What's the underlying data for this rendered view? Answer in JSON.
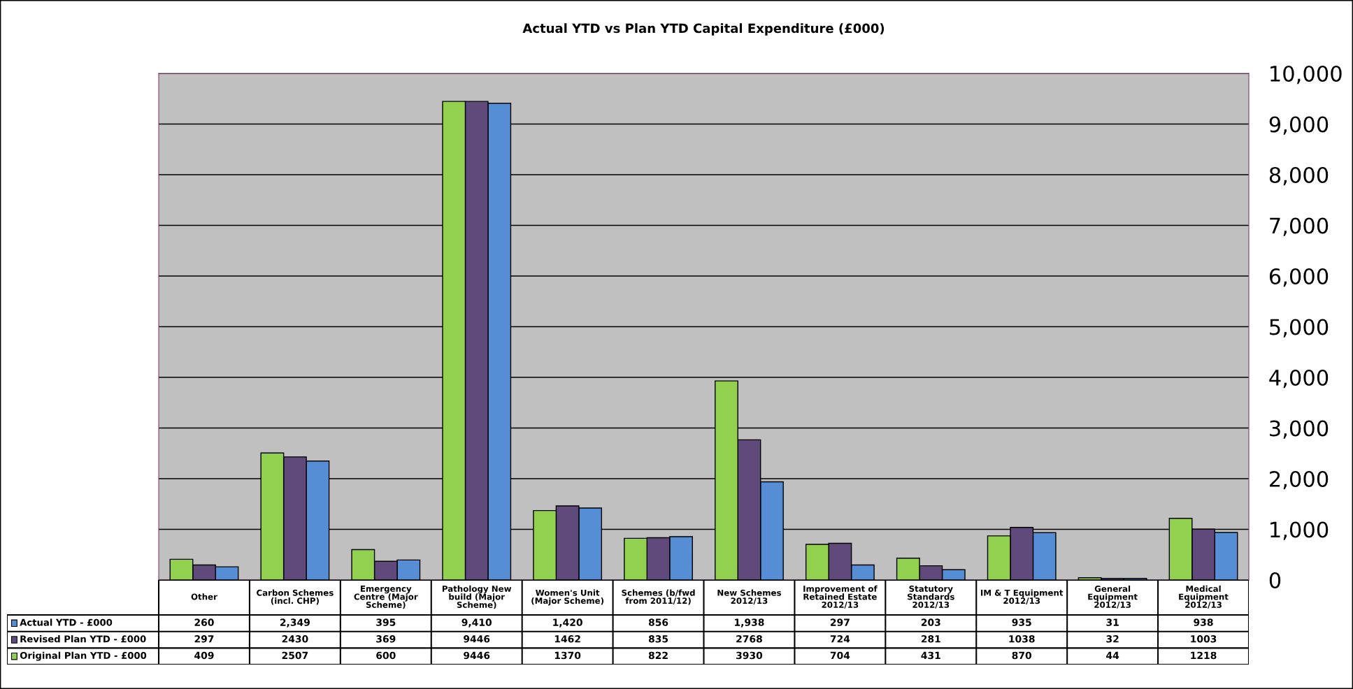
{
  "chart_data": {
    "type": "bar",
    "title": "Actual YTD vs Plan YTD Capital Expenditure (£000)",
    "categories": [
      "Other",
      "Carbon Schemes\n(incl. CHP)",
      "Emergency\nCentre (Major\nScheme)",
      "Pathology New\nbuild (Major\nScheme)",
      "Women's Unit\n(Major Scheme)",
      "Schemes (b/fwd\nfrom 2011/12)",
      "New Schemes\n2012/13",
      "Improvement of\nRetained Estate\n2012/13",
      "Statutory\nStandards\n2012/13",
      "IM & T Equipment\n2012/13",
      "General\nEquipment\n2012/13",
      "Medical\nEquipment\n2012/13"
    ],
    "series": [
      {
        "name": "Actual YTD - £000",
        "color": "#558ed5",
        "values": [
          260,
          2349,
          395,
          9410,
          1420,
          856,
          1938,
          297,
          203,
          935,
          31,
          938
        ],
        "value_labels": [
          "260",
          "2,349",
          "395",
          "9,410",
          "1,420",
          "856",
          "1,938",
          "297",
          "203",
          "935",
          "31",
          "938"
        ]
      },
      {
        "name": "Revised Plan YTD - £000",
        "color": "#604a7b",
        "values": [
          297,
          2430,
          369,
          9446,
          1462,
          835,
          2768,
          724,
          281,
          1038,
          32,
          1003
        ],
        "value_labels": [
          "297",
          "2430",
          "369",
          "9446",
          "1462",
          "835",
          "2768",
          "724",
          "281",
          "1038",
          "32",
          "1003"
        ]
      },
      {
        "name": "Original Plan YTD - £000",
        "color": "#92d050",
        "values": [
          409,
          2507,
          600,
          9446,
          1370,
          822,
          3930,
          704,
          431,
          870,
          44,
          1218
        ],
        "value_labels": [
          "409",
          "2507",
          "600",
          "9446",
          "1370",
          "822",
          "3930",
          "704",
          "431",
          "870",
          "44",
          "1218"
        ]
      }
    ],
    "ylim": [
      0,
      10000
    ],
    "yticks": [
      0,
      {
        "value": 1000,
        "label": "1,000"
      },
      {
        "value": 2000,
        "label": "2,000"
      },
      {
        "value": 3000,
        "label": "3,000"
      },
      {
        "value": 4000,
        "label": "4,000"
      },
      {
        "value": 5000,
        "label": "5,000"
      },
      {
        "value": 6000,
        "label": "6,000"
      },
      {
        "value": 7000,
        "label": "7,000"
      },
      {
        "value": 8000,
        "label": "8,000"
      },
      {
        "value": 9000,
        "label": "9,000"
      },
      {
        "value": 10000,
        "label": "10,000"
      }
    ],
    "grid": "y",
    "legend": "bottom"
  }
}
